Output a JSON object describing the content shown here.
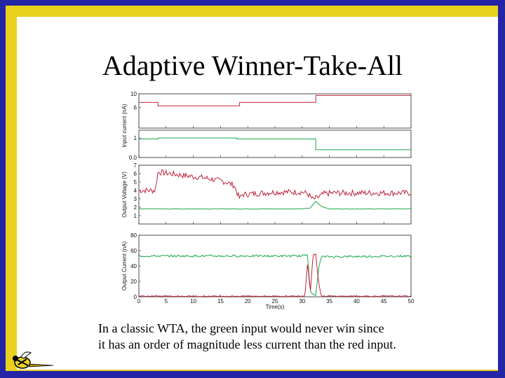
{
  "slide": {
    "title": "Adaptive Winner-Take-All",
    "caption_lines": [
      "In a classic WTA, the green input would never win since",
      "it has an order of magnitude less current than the red input."
    ]
  },
  "colors": {
    "border": "#2424a6",
    "band": "#e8d21e",
    "red": "#c0243a",
    "green": "#1aa84a"
  },
  "chart_data": [
    {
      "type": "line",
      "ylabel": "Input current (nA)",
      "x_ticks": [
        "0",
        "5",
        "10",
        "15",
        "20",
        "25",
        "30",
        "35",
        "40",
        "45",
        "50"
      ],
      "ylim": [
        0,
        10
      ],
      "y_ticks": [
        "10",
        "6"
      ],
      "xlim": [
        0,
        50
      ],
      "series": [
        {
          "color": "red",
          "x": [
            0,
            3.5,
            3.5,
            18.5,
            18.5,
            32.5,
            32.5,
            50
          ],
          "values": [
            7.5,
            7.5,
            6.5,
            6.5,
            7.5,
            7.5,
            9.5,
            9.5
          ]
        }
      ]
    },
    {
      "type": "line",
      "ylabel": "Input current (nA)",
      "ylim": [
        0,
        1.4
      ],
      "y_ticks": [
        "1",
        "0.0"
      ],
      "xlim": [
        0,
        50
      ],
      "series": [
        {
          "color": "green",
          "x": [
            0,
            3.5,
            3.5,
            18,
            18,
            32.5,
            32.5,
            50
          ],
          "values": [
            0.95,
            0.95,
            1.0,
            1.0,
            0.95,
            0.95,
            0.4,
            0.4
          ]
        }
      ]
    },
    {
      "type": "line",
      "ylabel": "Output Voltage (V)",
      "ylim": [
        0,
        7
      ],
      "y_ticks": [
        "7",
        "6",
        "5",
        "4",
        "3",
        "2",
        "1"
      ],
      "xlim": [
        0,
        50
      ],
      "series": [
        {
          "color": "red",
          "x": [
            0,
            2,
            3,
            3.5,
            8,
            12,
            16,
            17.5,
            18.5,
            19,
            25,
            30,
            31,
            32,
            33,
            34,
            36,
            40,
            45,
            50
          ],
          "values": [
            4.0,
            4.0,
            4.0,
            6.2,
            5.8,
            5.5,
            5.0,
            4.6,
            3.0,
            3.5,
            3.8,
            3.8,
            3.6,
            2.9,
            3.2,
            3.6,
            3.7,
            3.7,
            3.7,
            3.7
          ],
          "noise": 0.35
        },
        {
          "color": "green",
          "x": [
            0,
            30,
            31.5,
            32.5,
            33.5,
            35,
            50
          ],
          "values": [
            1.8,
            1.8,
            1.9,
            2.7,
            2.1,
            1.8,
            1.8
          ],
          "noise": 0.03
        }
      ]
    },
    {
      "type": "line",
      "ylabel": "Output Current (nA)",
      "xlabel": "Time(s)",
      "ylim": [
        0,
        80
      ],
      "y_ticks": [
        "80",
        "60",
        "40",
        "20",
        "0"
      ],
      "x_ticks": [
        "0",
        "5",
        "10",
        "15",
        "20",
        "25",
        "30",
        "35",
        "40",
        "45",
        "50"
      ],
      "xlim": [
        0,
        50
      ],
      "series": [
        {
          "color": "green",
          "x": [
            0,
            30,
            31,
            31.5,
            32,
            32.5,
            33,
            33.5,
            50
          ],
          "values": [
            53,
            53,
            55,
            8,
            2,
            2,
            35,
            52,
            53
          ],
          "noise": 1.3
        },
        {
          "color": "red",
          "x": [
            0,
            30,
            30.5,
            31,
            31.5,
            32,
            32.5,
            33,
            33.5,
            34,
            50
          ],
          "values": [
            0.8,
            0.8,
            0.8,
            45,
            5,
            55,
            55,
            20,
            1,
            0.8,
            0.8
          ],
          "noise": 0.6
        }
      ]
    }
  ]
}
